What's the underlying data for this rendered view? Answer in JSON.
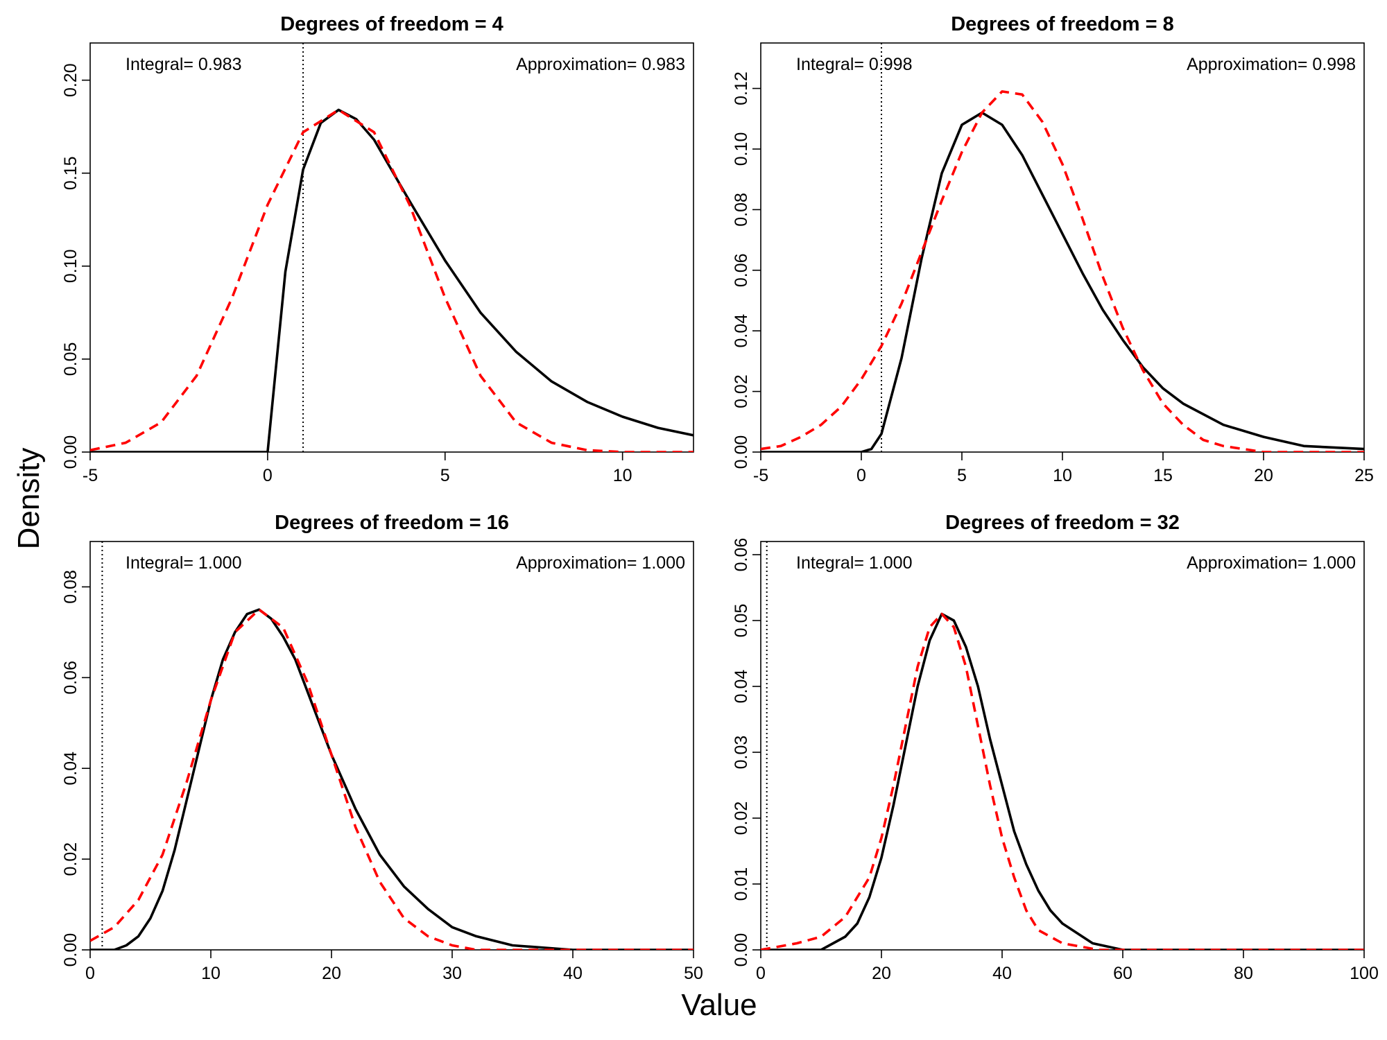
{
  "figure": {
    "ylabel": "Density",
    "xlabel": "Value",
    "colors": {
      "exact": "#000000",
      "approximation": "#ff0000",
      "reference_line": "#000000"
    }
  },
  "chart_data": [
    {
      "type": "line",
      "title": "Degrees of freedom =  4",
      "df": 4,
      "xlim": [
        -5,
        12
      ],
      "ylim": [
        0,
        0.22
      ],
      "x_ticks": [
        -5,
        0,
        5,
        10
      ],
      "x_tick_labels": [
        "-5",
        "0",
        "5",
        "10"
      ],
      "y_ticks": [
        0,
        0.05,
        0.1,
        0.15,
        0.2
      ],
      "y_tick_labels": [
        "0.00",
        "0.05",
        "0.10",
        "0.15",
        "0.20"
      ],
      "reference_x": 1,
      "integral_label": "Integral= 0.983",
      "approximation_label": "Approximation= 0.983",
      "series": [
        {
          "style": "solid",
          "color": "#000000",
          "x": [
            -5,
            0,
            0.5,
            1,
            1.5,
            2,
            2.5,
            3,
            4,
            5,
            6,
            7,
            8,
            9,
            10,
            11,
            12
          ],
          "y": [
            0,
            0,
            0.097,
            0.152,
            0.177,
            0.184,
            0.179,
            0.168,
            0.135,
            0.103,
            0.075,
            0.054,
            0.038,
            0.027,
            0.019,
            0.013,
            0.009
          ]
        },
        {
          "style": "dashed",
          "color": "#ff0000",
          "x": [
            -5,
            -4,
            -3,
            -2,
            -1,
            0,
            1,
            2,
            3,
            4,
            5,
            6,
            7,
            8,
            9,
            10,
            12
          ],
          "y": [
            0.001,
            0.005,
            0.016,
            0.041,
            0.083,
            0.133,
            0.172,
            0.184,
            0.172,
            0.133,
            0.083,
            0.041,
            0.016,
            0.005,
            0.001,
            0,
            0
          ]
        }
      ]
    },
    {
      "type": "line",
      "title": "Degrees of freedom =  8",
      "df": 8,
      "xlim": [
        -5,
        25
      ],
      "ylim": [
        0,
        0.135
      ],
      "x_ticks": [
        -5,
        0,
        5,
        10,
        15,
        20,
        25
      ],
      "x_tick_labels": [
        "-5",
        "0",
        "5",
        "10",
        "15",
        "20",
        "25"
      ],
      "y_ticks": [
        0,
        0.02,
        0.04,
        0.06,
        0.08,
        0.1,
        0.12
      ],
      "y_tick_labels": [
        "0.00",
        "0.02",
        "0.04",
        "0.06",
        "0.08",
        "0.10",
        "0.12"
      ],
      "reference_x": 1,
      "integral_label": "Integral= 0.998",
      "approximation_label": "Approximation= 0.998",
      "series": [
        {
          "style": "solid",
          "color": "#000000",
          "x": [
            -5,
            0,
            0.5,
            1,
            2,
            3,
            4,
            5,
            6,
            7,
            8,
            9,
            10,
            11,
            12,
            13,
            14,
            15,
            16,
            18,
            20,
            22,
            25
          ],
          "y": [
            0,
            0,
            0.001,
            0.006,
            0.031,
            0.064,
            0.092,
            0.108,
            0.112,
            0.108,
            0.098,
            0.085,
            0.072,
            0.059,
            0.047,
            0.037,
            0.028,
            0.021,
            0.016,
            0.009,
            0.005,
            0.002,
            0.001
          ]
        },
        {
          "style": "dashed",
          "color": "#ff0000",
          "x": [
            -5,
            -4,
            -3,
            -2,
            -1,
            0,
            1,
            2,
            3,
            4,
            5,
            6,
            7,
            8,
            9,
            10,
            11,
            12,
            13,
            14,
            15,
            16,
            17,
            18,
            20,
            25
          ],
          "y": [
            0.001,
            0.002,
            0.005,
            0.009,
            0.015,
            0.024,
            0.035,
            0.049,
            0.066,
            0.083,
            0.099,
            0.112,
            0.119,
            0.118,
            0.109,
            0.095,
            0.077,
            0.058,
            0.041,
            0.027,
            0.016,
            0.009,
            0.004,
            0.002,
            0,
            0
          ]
        }
      ]
    },
    {
      "type": "line",
      "title": "Degrees of freedom =  16",
      "df": 16,
      "xlim": [
        0,
        50
      ],
      "ylim": [
        0,
        0.09
      ],
      "x_ticks": [
        0,
        10,
        20,
        30,
        40,
        50
      ],
      "x_tick_labels": [
        "0",
        "10",
        "20",
        "30",
        "40",
        "50"
      ],
      "y_ticks": [
        0,
        0.02,
        0.04,
        0.06,
        0.08
      ],
      "y_tick_labels": [
        "0.00",
        "0.02",
        "0.04",
        "0.06",
        "0.08"
      ],
      "reference_x": 1,
      "integral_label": "Integral= 1.000",
      "approximation_label": "Approximation= 1.000",
      "series": [
        {
          "style": "solid",
          "color": "#000000",
          "x": [
            0,
            2,
            3,
            4,
            5,
            6,
            7,
            8,
            9,
            10,
            11,
            12,
            13,
            14,
            15,
            16,
            17,
            18,
            19,
            20,
            22,
            24,
            26,
            28,
            30,
            32,
            35,
            40,
            45,
            50
          ],
          "y": [
            0,
            0,
            0.001,
            0.003,
            0.007,
            0.013,
            0.022,
            0.033,
            0.044,
            0.055,
            0.064,
            0.07,
            0.074,
            0.075,
            0.073,
            0.069,
            0.064,
            0.057,
            0.05,
            0.043,
            0.031,
            0.021,
            0.014,
            0.009,
            0.005,
            0.003,
            0.001,
            0,
            0,
            0
          ]
        },
        {
          "style": "dashed",
          "color": "#ff0000",
          "x": [
            0,
            2,
            4,
            6,
            8,
            10,
            12,
            14,
            16,
            18,
            20,
            22,
            24,
            26,
            28,
            30,
            32,
            35,
            40,
            50
          ],
          "y": [
            0.002,
            0.005,
            0.011,
            0.021,
            0.037,
            0.055,
            0.07,
            0.075,
            0.071,
            0.059,
            0.043,
            0.027,
            0.015,
            0.007,
            0.003,
            0.001,
            0,
            0,
            0,
            0
          ]
        }
      ]
    },
    {
      "type": "line",
      "title": "Degrees of freedom =  32",
      "df": 32,
      "xlim": [
        0,
        100
      ],
      "ylim": [
        0,
        0.062
      ],
      "x_ticks": [
        0,
        20,
        40,
        60,
        80,
        100
      ],
      "x_tick_labels": [
        "0",
        "20",
        "40",
        "60",
        "80",
        "100"
      ],
      "y_ticks": [
        0,
        0.01,
        0.02,
        0.03,
        0.04,
        0.05,
        0.06
      ],
      "y_tick_labels": [
        "0.00",
        "0.01",
        "0.02",
        "0.03",
        "0.04",
        "0.05",
        "0.06"
      ],
      "reference_x": 1,
      "integral_label": "Integral= 1.000",
      "approximation_label": "Approximation= 1.000",
      "series": [
        {
          "style": "solid",
          "color": "#000000",
          "x": [
            0,
            10,
            12,
            14,
            16,
            18,
            20,
            22,
            24,
            26,
            28,
            30,
            32,
            34,
            36,
            38,
            40,
            42,
            44,
            46,
            48,
            50,
            55,
            60,
            65,
            70,
            80,
            100
          ],
          "y": [
            0,
            0,
            0.001,
            0.002,
            0.004,
            0.008,
            0.014,
            0.022,
            0.031,
            0.04,
            0.047,
            0.051,
            0.05,
            0.046,
            0.04,
            0.032,
            0.025,
            0.018,
            0.013,
            0.009,
            0.006,
            0.004,
            0.001,
            0,
            0,
            0,
            0,
            0
          ]
        },
        {
          "style": "dashed",
          "color": "#ff0000",
          "x": [
            0,
            6,
            10,
            14,
            18,
            20,
            22,
            24,
            26,
            28,
            30,
            32,
            34,
            36,
            38,
            40,
            42,
            44,
            46,
            50,
            56,
            60,
            100
          ],
          "y": [
            0,
            0.001,
            0.002,
            0.005,
            0.011,
            0.017,
            0.025,
            0.034,
            0.043,
            0.049,
            0.051,
            0.049,
            0.043,
            0.034,
            0.025,
            0.017,
            0.011,
            0.006,
            0.003,
            0.001,
            0,
            0,
            0
          ]
        }
      ]
    }
  ]
}
